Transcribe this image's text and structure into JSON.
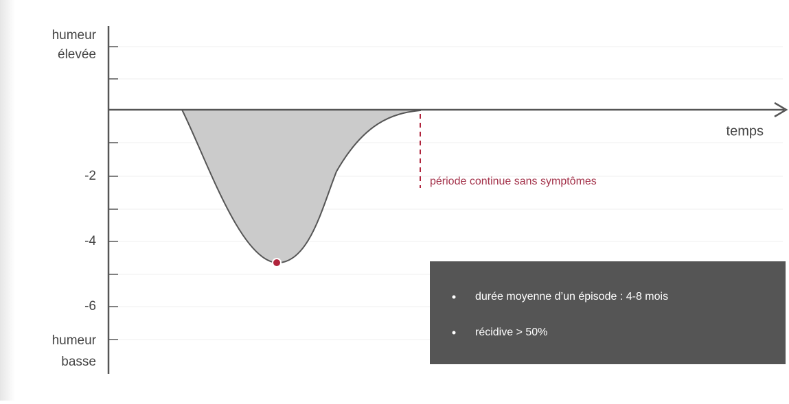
{
  "y_axis": {
    "top_label": [
      "humeur",
      "élevée"
    ],
    "bottom_label": [
      "humeur",
      "basse"
    ],
    "ticks": [
      "-2",
      "-4",
      "-6"
    ]
  },
  "x_axis": {
    "label": "temps"
  },
  "annotation": "période continue sans symptômes",
  "info_box": {
    "items": [
      "durée moyenne d’un épisode : 4-8 mois",
      "récidive > 50%"
    ]
  }
}
